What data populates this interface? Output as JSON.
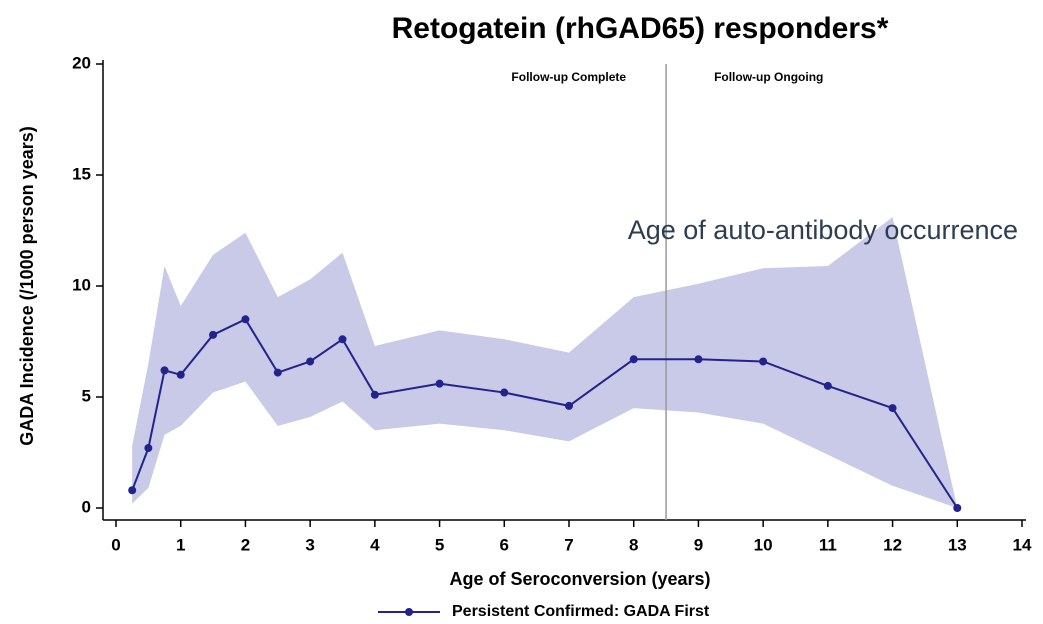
{
  "chart_data": {
    "type": "line",
    "title": "Retogatein (rhGAD65) responders*",
    "annotation": "Age of auto-antibody occurrence",
    "xlabel": "Age of Seroconversion (years)",
    "ylabel": "GADA Incidence (/1000 person years)",
    "xlim": [
      0,
      14
    ],
    "ylim": [
      0,
      20
    ],
    "xticks": [
      0,
      1,
      2,
      3,
      4,
      5,
      6,
      7,
      8,
      9,
      10,
      11,
      12,
      13,
      14
    ],
    "yticks": [
      0,
      5,
      10,
      15,
      20
    ],
    "reference_line": {
      "x": 8.5,
      "left_label": "Follow-up Complete",
      "right_label": "Follow-up Ongoing"
    },
    "x": [
      0.25,
      0.5,
      0.75,
      1,
      1.5,
      2,
      2.5,
      3,
      3.5,
      4,
      5,
      6,
      7,
      8,
      9,
      10,
      11,
      12,
      13
    ],
    "series": [
      {
        "name": "Persistent Confirmed: GADA First",
        "color": "#23238e",
        "band_color": "#c9c9e8",
        "values": [
          0.8,
          2.7,
          6.2,
          6.0,
          7.8,
          8.5,
          6.1,
          6.6,
          7.6,
          5.1,
          5.6,
          5.2,
          4.6,
          6.7,
          6.7,
          6.6,
          5.5,
          4.5,
          0
        ],
        "upper": [
          2.8,
          6.5,
          10.9,
          9.1,
          11.4,
          12.4,
          9.5,
          10.3,
          11.5,
          7.3,
          8.0,
          7.6,
          7.0,
          9.5,
          10.1,
          10.8,
          10.9,
          13.1,
          0
        ],
        "lower": [
          0.2,
          0.9,
          3.3,
          3.7,
          5.2,
          5.7,
          3.7,
          4.1,
          4.8,
          3.5,
          3.8,
          3.5,
          3.0,
          4.5,
          4.3,
          3.8,
          2.4,
          1.0,
          0
        ]
      }
    ]
  }
}
